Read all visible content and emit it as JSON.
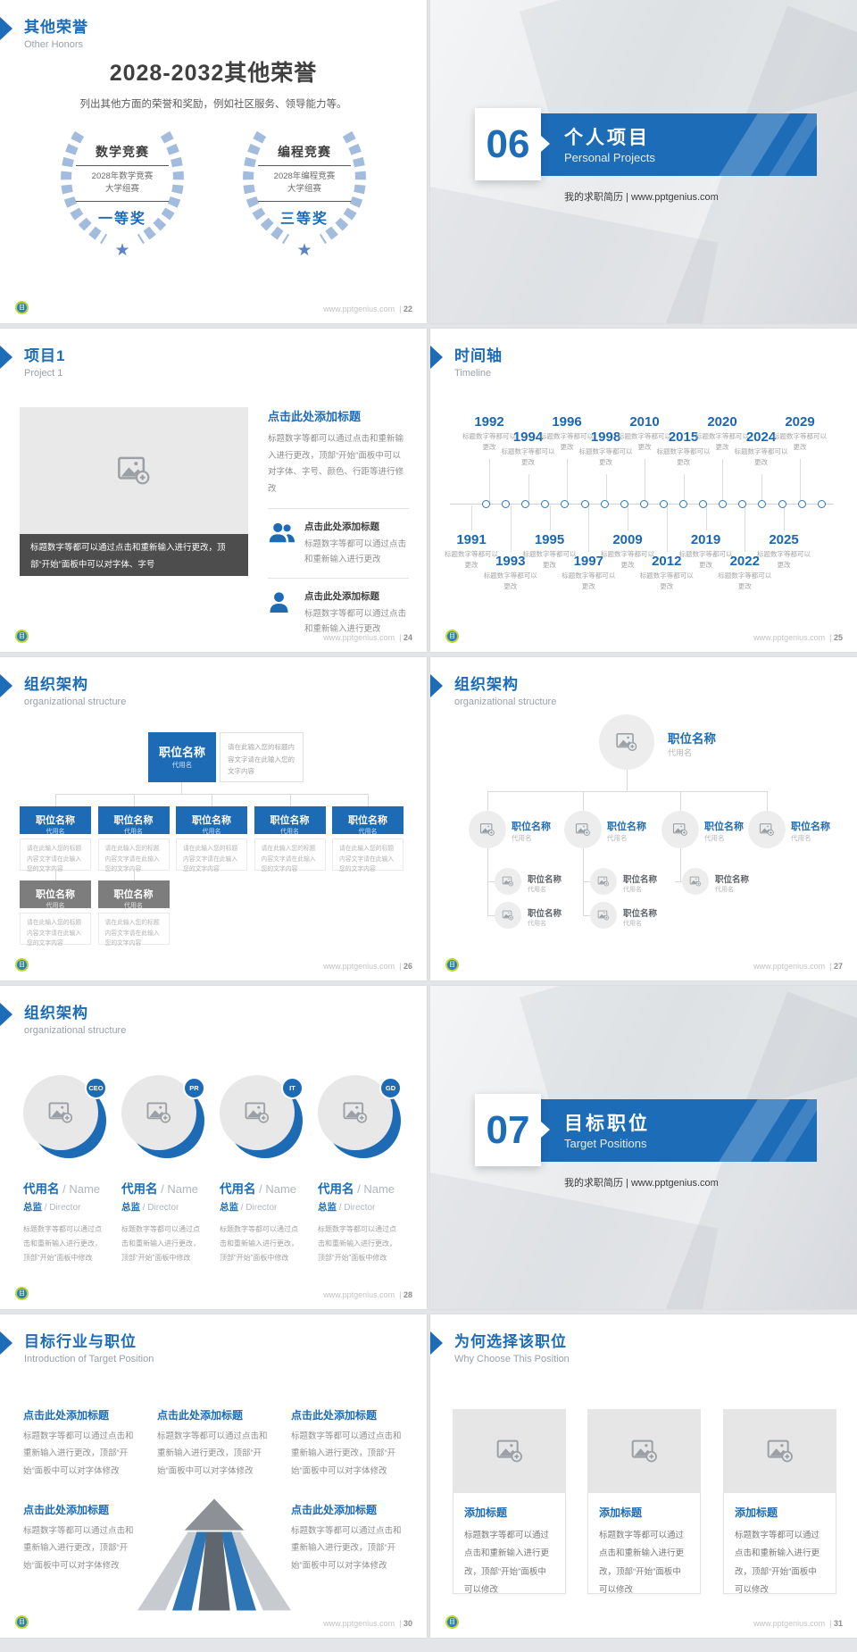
{
  "site": "www.pptgenius.com",
  "colors": {
    "accent_blue": "#1c6cb8",
    "banner_blue": "#1d6cb8",
    "node_blue": "#1d6ab5",
    "node_gray": "#7d7d7d",
    "wreath_blue": "#a3bcde",
    "dark_text": "#3f3f3f"
  },
  "slides": [
    {
      "id": "other-honors",
      "page": "22",
      "title": "其他荣誉",
      "subtitle": "Other Honors",
      "heading": "2028-2032其他荣誉",
      "desc": "列出其他方面的荣誉和奖励，例如社区服务、领导能力等。",
      "awards": [
        {
          "name": "数学竞赛",
          "detail1": "2028年数学竞赛",
          "detail2": "大学组赛",
          "prize": "一等奖"
        },
        {
          "name": "编程竞赛",
          "detail1": "2028年编程竞赛",
          "detail2": "大学组赛",
          "prize": "三等奖"
        }
      ]
    },
    {
      "id": "divider-06",
      "number": "06",
      "title": "个人项目",
      "subtitle": "Personal Projects",
      "tagline": "我的求职简历 | www.pptgenius.com"
    },
    {
      "id": "project-1",
      "page": "24",
      "title": "项目1",
      "subtitle": "Project 1",
      "caption": "标题数字等都可以通过点击和重新输入进行更改，顶部“开始”面板中可以对字体、字号",
      "right_heading": "点击此处添加标题",
      "right_body": "标题数字等都可以通过点击和重新输入进行更改，顶部“开始”面板中可以对字体、字号、颜色、行距等进行修改",
      "items": [
        {
          "icon": "people-icon",
          "heading": "点击此处添加标题",
          "body": "标题数字等都可以通过点击和重新输入进行更改"
        },
        {
          "icon": "person-icon",
          "heading": "点击此处添加标题",
          "body": "标题数字等都可以通过点击和重新输入进行更改"
        }
      ]
    },
    {
      "id": "timeline",
      "page": "25",
      "title": "时间轴",
      "subtitle": "Timeline",
      "caption": "标题数字等都可以更改",
      "top_years": [
        "1992",
        "1994",
        "1996",
        "1998",
        "2010",
        "2015",
        "2020",
        "2024",
        "2029"
      ],
      "bottom_years": [
        "1991",
        "1993",
        "1995",
        "1997",
        "2009",
        "2012",
        "2019",
        "2022",
        "2025"
      ]
    },
    {
      "id": "org-structure-boxes",
      "page": "26",
      "title": "组织架构",
      "subtitle": "organizational structure",
      "node_title": "职位名称",
      "node_alias": "代用名",
      "note": "请在此输入您的标题内容文字请在此输入您的文字内容",
      "tier1_count": 5,
      "tier2_count": 2
    },
    {
      "id": "org-structure-photos",
      "page": "27",
      "title": "组织架构",
      "subtitle": "organizational structure",
      "node_title": "职位名称",
      "node_alias": "代用名",
      "tier2_count": 4,
      "tier3_count": 3,
      "tier4_count": 2
    },
    {
      "id": "org-structure-directors",
      "page": "28",
      "title": "组织架构",
      "subtitle": "organizational structure",
      "roles": [
        "CEO",
        "PR",
        "IT",
        "GD"
      ],
      "name_cn": "代用名",
      "name_en": "Name",
      "role_cn": "总监",
      "role_en": "Director",
      "body": "标题数字等都可以通过点击和重新输入进行更改，顶部“开始”面板中修改"
    },
    {
      "id": "divider-07",
      "number": "07",
      "title": "目标职位",
      "subtitle": "Target Positions",
      "tagline": "我的求职简历 | www.pptgenius.com"
    },
    {
      "id": "target-position",
      "page": "30",
      "title": "目标行业与职位",
      "subtitle": "Introduction of Target Position",
      "block_heading": "点击此处添加标题",
      "block_body": "标题数字等都可以通过点击和重新输入进行更改，顶部“开始”面板中可以对字体修改",
      "block_count": 5
    },
    {
      "id": "why-this-position",
      "page": "31",
      "title": "为何选择该职位",
      "subtitle": "Why Choose This Position",
      "card_heading": "添加标题",
      "card_body": "标题数字等都可以通过点击和重新输入进行更改，顶部“开始”面板中可以修改",
      "card_count": 3
    }
  ]
}
